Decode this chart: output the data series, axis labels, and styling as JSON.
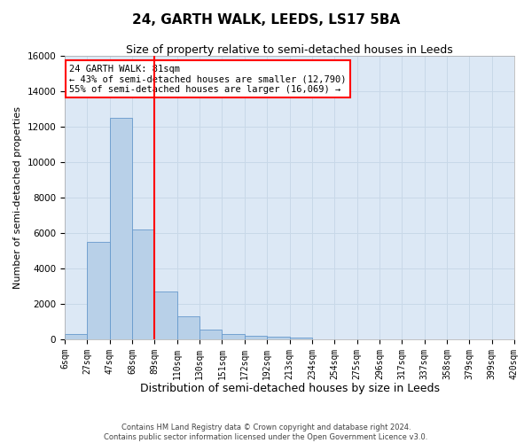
{
  "title": "24, GARTH WALK, LEEDS, LS17 5BA",
  "subtitle": "Size of property relative to semi-detached houses in Leeds",
  "xlabel": "Distribution of semi-detached houses by size in Leeds",
  "ylabel": "Number of semi-detached properties",
  "bar_values": [
    300,
    5500,
    12500,
    6200,
    2700,
    1300,
    550,
    280,
    200,
    130,
    100,
    0,
    0,
    0,
    0,
    0,
    0,
    0,
    0,
    0
  ],
  "tick_labels": [
    "6sqm",
    "27sqm",
    "47sqm",
    "68sqm",
    "89sqm",
    "110sqm",
    "130sqm",
    "151sqm",
    "172sqm",
    "192sqm",
    "213sqm",
    "234sqm",
    "254sqm",
    "275sqm",
    "296sqm",
    "317sqm",
    "337sqm",
    "358sqm",
    "379sqm",
    "399sqm",
    "420sqm"
  ],
  "bar_color": "#b8d0e8",
  "bar_edge_color": "#6699cc",
  "grid_color": "#c8d8e8",
  "background_color": "#dce8f5",
  "red_line_bin": 3,
  "annotation_text": "24 GARTH WALK: 81sqm\n← 43% of semi-detached houses are smaller (12,790)\n55% of semi-detached houses are larger (16,069) →",
  "footer_line1": "Contains HM Land Registry data © Crown copyright and database right 2024.",
  "footer_line2": "Contains public sector information licensed under the Open Government Licence v3.0.",
  "ylim": [
    0,
    16000
  ],
  "yticks": [
    0,
    2000,
    4000,
    6000,
    8000,
    10000,
    12000,
    14000,
    16000
  ],
  "title_fontsize": 11,
  "subtitle_fontsize": 9,
  "xlabel_fontsize": 9,
  "ylabel_fontsize": 8,
  "annotation_fontsize": 7.5,
  "tick_fontsize": 7
}
